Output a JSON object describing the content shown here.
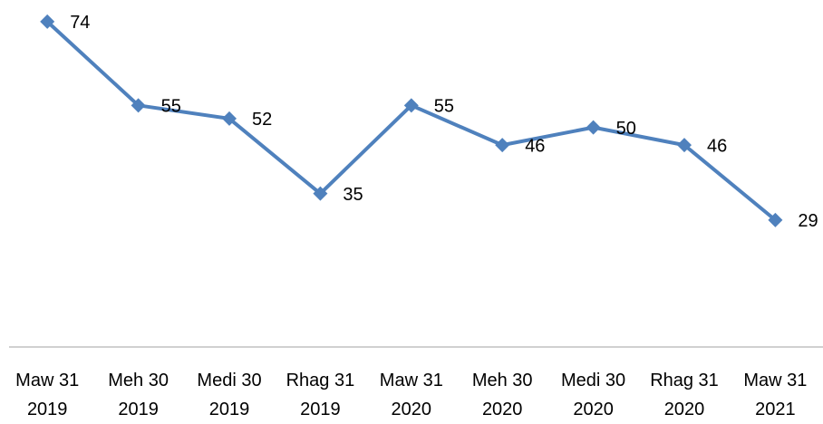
{
  "chart_data": {
    "type": "line",
    "categories": [
      "Maw 31\n2019",
      "Meh 30\n2019",
      "Medi 30\n2019",
      "Rhag 31\n2019",
      "Maw 31\n2020",
      "Meh 30\n2020",
      "Medi 30\n2020",
      "Rhag 31\n2020",
      "Maw 31\n2021"
    ],
    "series": [
      {
        "name": null,
        "color": "#4f81bd",
        "values": [
          74,
          55,
          52,
          35,
          55,
          46,
          50,
          46,
          29
        ]
      }
    ],
    "ylim": [
      0,
      80
    ]
  }
}
